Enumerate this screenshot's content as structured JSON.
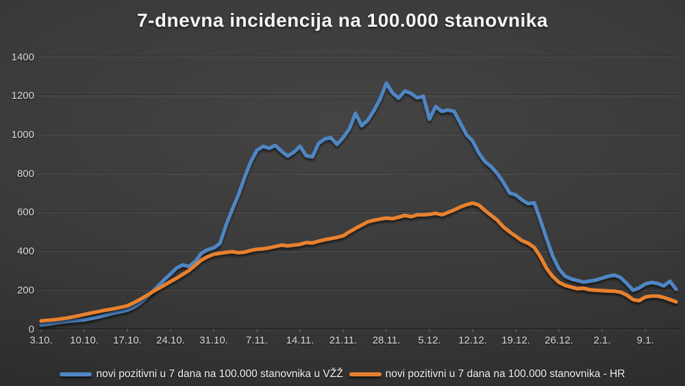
{
  "chart_data": {
    "type": "line",
    "title": "7-dnevna incidencija na 100.000 stanovnika",
    "x_tick_labels": [
      "3.10.",
      "10.10.",
      "17.10.",
      "24.10.",
      "31.10.",
      "7.11.",
      "14.11.",
      "21.11.",
      "28.11.",
      "5.12.",
      "12.12.",
      "19.12.",
      "26.12.",
      "2.1.",
      "9.1."
    ],
    "x_tick_interval_days": 7,
    "y_ticks": [
      0,
      200,
      400,
      600,
      800,
      1000,
      1200,
      1400
    ],
    "ylim": [
      0,
      1400
    ],
    "grid": "horizontal",
    "legend_position": "bottom",
    "series": [
      {
        "id": "vzz",
        "name": "novi pozitivni u 7 dana na 100.000 stanovnika u VŽŽ",
        "color": "#4f85c3",
        "values": [
          22,
          25,
          30,
          35,
          38,
          42,
          45,
          48,
          54,
          60,
          68,
          76,
          84,
          90,
          98,
          112,
          132,
          158,
          190,
          222,
          255,
          284,
          315,
          330,
          322,
          348,
          390,
          408,
          418,
          440,
          535,
          615,
          690,
          780,
          860,
          920,
          940,
          930,
          945,
          915,
          890,
          910,
          940,
          892,
          886,
          955,
          978,
          985,
          950,
          985,
          1030,
          1110,
          1046,
          1075,
          1125,
          1185,
          1265,
          1215,
          1188,
          1225,
          1212,
          1190,
          1198,
          1080,
          1145,
          1120,
          1127,
          1120,
          1060,
          1000,
          968,
          906,
          861,
          836,
          800,
          755,
          700,
          690,
          665,
          645,
          650,
          560,
          465,
          375,
          310,
          272,
          258,
          250,
          242,
          247,
          252,
          262,
          272,
          278,
          265,
          235,
          200,
          212,
          232,
          240,
          235,
          222,
          246,
          205
        ]
      },
      {
        "id": "hr",
        "name": "novi pozitivni u 7 dana na 100.000 stanovnika - HR",
        "color": "#e8812f",
        "values": [
          42,
          45,
          48,
          52,
          56,
          62,
          68,
          75,
          82,
          88,
          95,
          100,
          106,
          113,
          120,
          135,
          152,
          170,
          190,
          208,
          226,
          245,
          262,
          282,
          302,
          328,
          355,
          372,
          385,
          390,
          395,
          398,
          393,
          396,
          405,
          411,
          413,
          418,
          425,
          432,
          428,
          432,
          436,
          445,
          443,
          452,
          460,
          465,
          472,
          480,
          500,
          518,
          535,
          552,
          560,
          566,
          571,
          568,
          576,
          585,
          578,
          588,
          588,
          590,
          596,
          588,
          600,
          613,
          628,
          640,
          648,
          638,
          610,
          585,
          560,
          525,
          500,
          478,
          455,
          442,
          420,
          372,
          312,
          270,
          240,
          225,
          216,
          208,
          210,
          202,
          200,
          198,
          196,
          195,
          190,
          175,
          152,
          146,
          165,
          170,
          170,
          163,
          152,
          140
        ]
      }
    ]
  }
}
